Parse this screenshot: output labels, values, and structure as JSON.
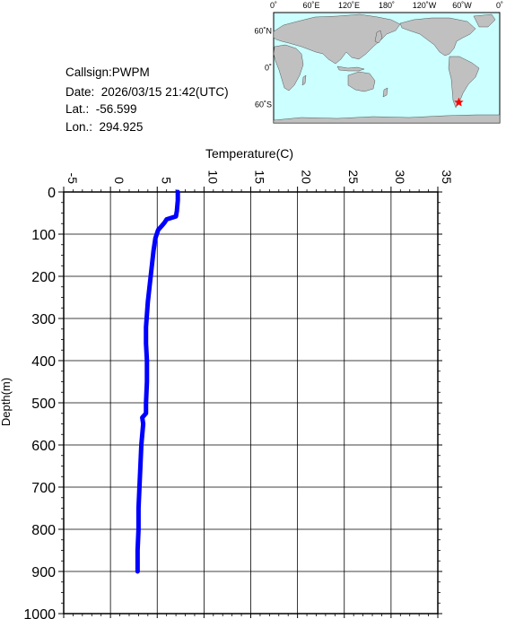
{
  "info": {
    "callsign_line": "Callsign:PWPM",
    "date_line": "Date:  2026/03/15 21:42(UTC)",
    "lat_line": "Lat.:  -56.599",
    "lon_line": "Lon.:  294.925"
  },
  "map": {
    "lon_ticks": [
      "0˚",
      "60˚E",
      "120˚E",
      "180˚",
      "120˚W",
      "60˚W",
      "0˚"
    ],
    "lat_ticks": [
      "60˚N",
      "0˚",
      "60˚S"
    ],
    "station_lon": 294.925,
    "station_lat": -56.599,
    "ocean_color": "#ccffff",
    "land_color": "#c0c0c0",
    "marker_color": "#ff0000",
    "marker_icon": "star-icon"
  },
  "chart_data": {
    "type": "line",
    "title": "",
    "xlabel": "Temperature(C)",
    "ylabel": "Depth(m)",
    "x_axis_position": "top",
    "y_axis_inverted": true,
    "xlim": [
      -5,
      35
    ],
    "ylim": [
      0,
      1000
    ],
    "x_ticks": [
      "-5",
      "0",
      "5",
      "10",
      "15",
      "20",
      "25",
      "30",
      "35"
    ],
    "y_ticks": [
      "0",
      "100",
      "200",
      "300",
      "400",
      "500",
      "600",
      "700",
      "800",
      "900",
      "1000"
    ],
    "grid": true,
    "line_color": "#0000ff",
    "series": [
      {
        "points": [
          {
            "temp": 7.2,
            "depth": 0
          },
          {
            "temp": 7.2,
            "depth": 20
          },
          {
            "temp": 7.1,
            "depth": 45
          },
          {
            "temp": 7.0,
            "depth": 58
          },
          {
            "temp": 6.0,
            "depth": 65
          },
          {
            "temp": 5.8,
            "depth": 72
          },
          {
            "temp": 5.5,
            "depth": 80
          },
          {
            "temp": 5.1,
            "depth": 90
          },
          {
            "temp": 4.8,
            "depth": 110
          },
          {
            "temp": 4.6,
            "depth": 140
          },
          {
            "temp": 4.4,
            "depth": 180
          },
          {
            "temp": 4.2,
            "depth": 220
          },
          {
            "temp": 4.0,
            "depth": 260
          },
          {
            "temp": 3.9,
            "depth": 290
          },
          {
            "temp": 3.8,
            "depth": 320
          },
          {
            "temp": 3.8,
            "depth": 360
          },
          {
            "temp": 3.9,
            "depth": 400
          },
          {
            "temp": 3.9,
            "depth": 450
          },
          {
            "temp": 3.8,
            "depth": 500
          },
          {
            "temp": 3.8,
            "depth": 525
          },
          {
            "temp": 3.4,
            "depth": 535
          },
          {
            "temp": 3.5,
            "depth": 550
          },
          {
            "temp": 3.3,
            "depth": 600
          },
          {
            "temp": 3.2,
            "depth": 650
          },
          {
            "temp": 3.1,
            "depth": 700
          },
          {
            "temp": 3.0,
            "depth": 750
          },
          {
            "temp": 3.0,
            "depth": 800
          },
          {
            "temp": 2.9,
            "depth": 850
          },
          {
            "temp": 2.9,
            "depth": 900
          }
        ]
      }
    ]
  }
}
